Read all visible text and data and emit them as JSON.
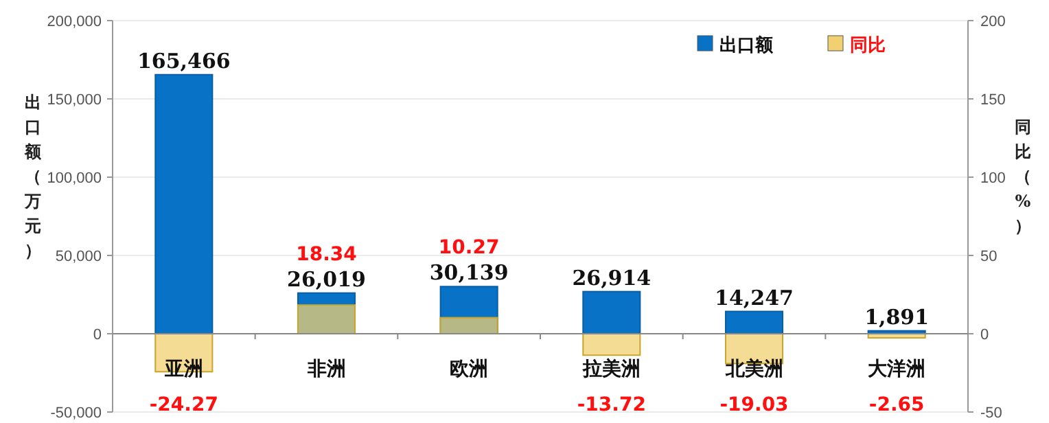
{
  "chart_data": {
    "type": "bar",
    "ylabel": "出口额（万元）",
    "y2label": "同比（%）",
    "categories": [
      "亚洲",
      "非洲",
      "欧洲",
      "拉美洲",
      "北美洲",
      "大洋洲"
    ],
    "series": [
      {
        "name": "出口额",
        "color": "#0873c6",
        "values": [
          165466,
          26019,
          30139,
          26914,
          14247,
          1891
        ],
        "value_labels": [
          "165,466",
          "26,019",
          "30,139",
          "26,914",
          "14,247",
          "1,891"
        ]
      },
      {
        "name": "同比",
        "color": "#f0d070",
        "axis": "y2",
        "values": [
          -24.27,
          18.34,
          10.27,
          -13.72,
          -19.03,
          -2.65
        ],
        "value_labels": [
          "-24.27",
          "18.34",
          "10.27",
          "-13.72",
          "-19.03",
          "-2.65"
        ]
      }
    ],
    "ylim": [
      -50000,
      200000
    ],
    "yticks": [
      {
        "value": -50000,
        "label": "-50,000"
      },
      0,
      {
        "value": 50000,
        "label": "50,000"
      },
      {
        "value": 100000,
        "label": "100,000"
      },
      {
        "value": 150000,
        "label": "150,000"
      },
      {
        "value": 200000,
        "label": "200,000"
      }
    ],
    "y2lim": [
      -50,
      200
    ],
    "y2ticks": [
      -50,
      0,
      50,
      100,
      150,
      200
    ],
    "grid": "y",
    "legend": "top right"
  }
}
